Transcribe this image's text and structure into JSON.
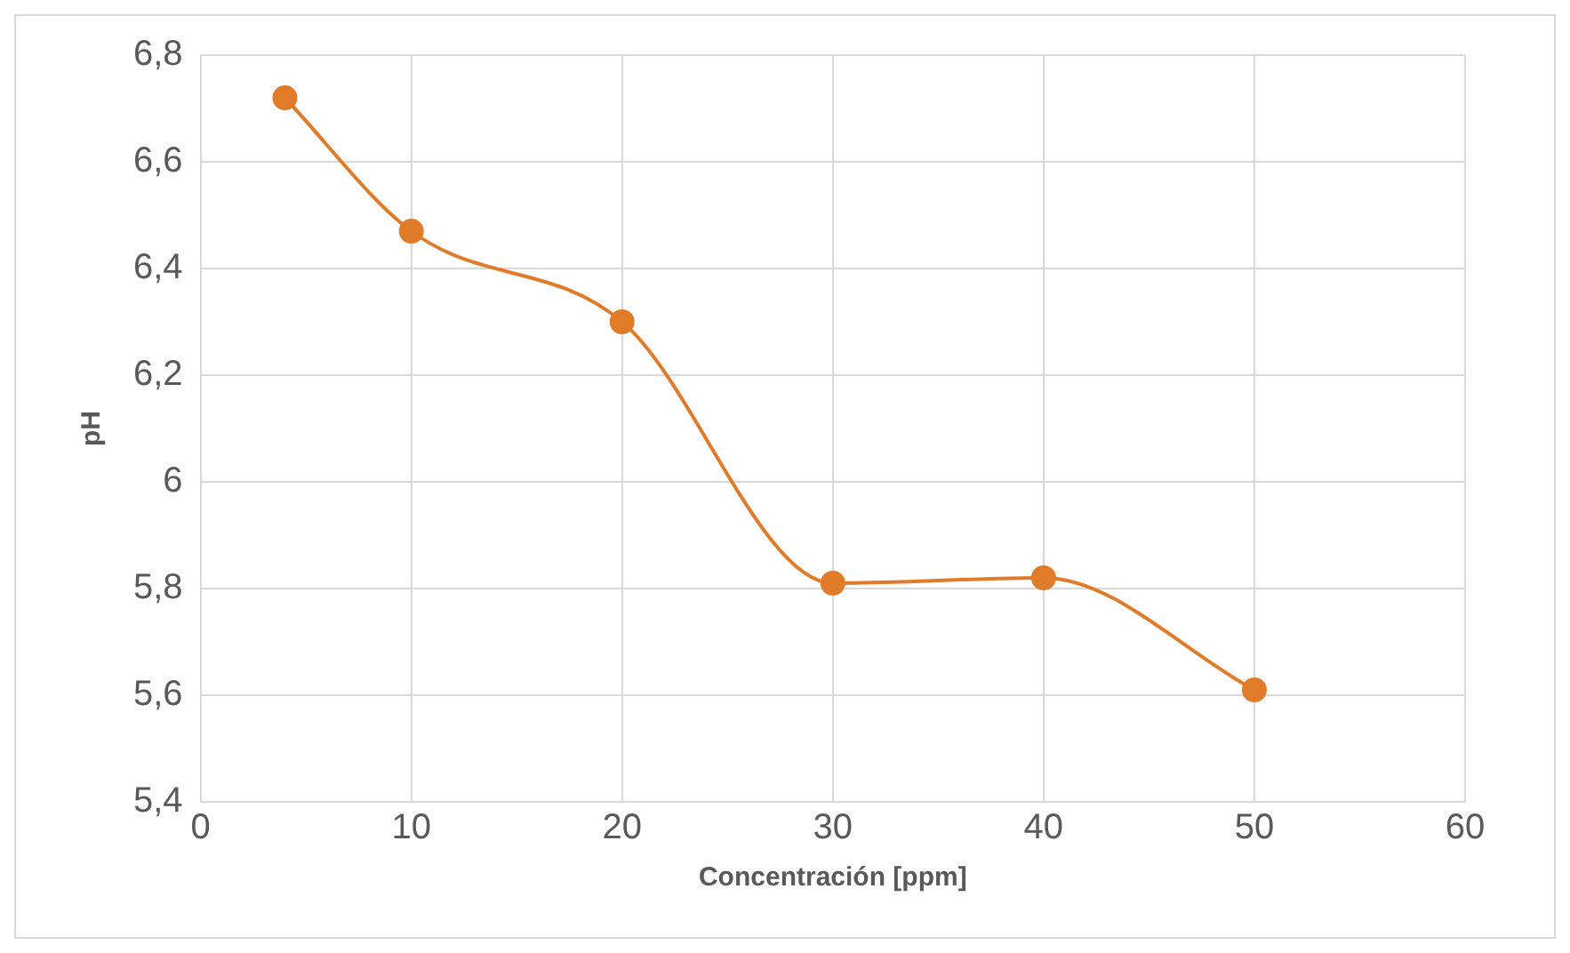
{
  "chart_data": {
    "type": "line",
    "xlabel": "Concentración [ppm]",
    "ylabel": "pH",
    "x": [
      4,
      10,
      20,
      30,
      40,
      50
    ],
    "series": [
      {
        "color": "#e07b2a",
        "values": [
          6.72,
          6.47,
          6.3,
          5.81,
          5.82,
          5.61
        ]
      }
    ],
    "xlim": [
      0,
      60
    ],
    "xticks": [
      0,
      10,
      20,
      30,
      40,
      50,
      60
    ],
    "ylim": [
      5.4,
      6.8
    ],
    "yticks": [
      {
        "value": 5.4,
        "label": "5,4"
      },
      {
        "value": 5.6,
        "label": "5,6"
      },
      {
        "value": 5.8,
        "label": "5,8"
      },
      6,
      {
        "value": 6.2,
        "label": "6,2"
      },
      {
        "value": 6.4,
        "label": "6,4"
      },
      {
        "value": 6.6,
        "label": "6,6"
      },
      {
        "value": 6.8,
        "label": "6,8"
      }
    ],
    "grid": true,
    "legend": false,
    "marker": "circle",
    "line_style": "solid"
  }
}
